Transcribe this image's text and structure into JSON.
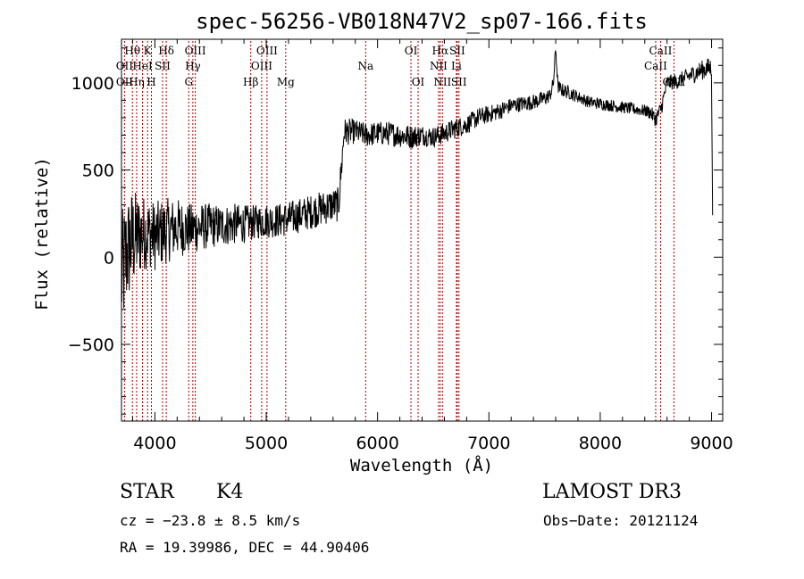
{
  "chart_data": {
    "type": "line",
    "title": "spec-56256-VB018N47V2_sp07-166.fits",
    "xlabel": "Wavelength (Å)",
    "ylabel": "Flux (relative)",
    "xlim": [
      3700,
      9100
    ],
    "ylim": [
      -940,
      1250
    ],
    "xticks": [
      4000,
      5000,
      6000,
      7000,
      8000,
      9000
    ],
    "xtick_labels": [
      "4000",
      "5000",
      "6000",
      "7000",
      "8000",
      "9000"
    ],
    "yticks": [
      -500,
      0,
      500,
      1000
    ],
    "ytick_labels": [
      "−500",
      "0",
      "500",
      "1000"
    ],
    "series": [
      {
        "name": "flux",
        "x": [
          3700,
          3750,
          3800,
          3850,
          3900,
          3950,
          4000,
          4100,
          4200,
          4300,
          4400,
          4500,
          4600,
          4700,
          4800,
          4900,
          5000,
          5100,
          5200,
          5300,
          5400,
          5500,
          5600,
          5650,
          5700,
          5800,
          5900,
          6000,
          6100,
          6200,
          6300,
          6400,
          6500,
          6600,
          6700,
          6800,
          6900,
          7000,
          7100,
          7200,
          7300,
          7400,
          7500,
          7550,
          7580,
          7600,
          7620,
          7650,
          7700,
          7800,
          7900,
          8000,
          8100,
          8200,
          8300,
          8400,
          8450,
          8500,
          8550,
          8600,
          8700,
          8800,
          8900,
          8950,
          9000,
          9010
        ],
        "y": [
          -120,
          30,
          100,
          120,
          140,
          140,
          120,
          150,
          170,
          160,
          170,
          180,
          180,
          190,
          190,
          200,
          210,
          210,
          220,
          240,
          260,
          280,
          300,
          300,
          720,
          720,
          700,
          710,
          710,
          700,
          690,
          700,
          690,
          710,
          740,
          760,
          800,
          820,
          840,
          870,
          880,
          890,
          910,
          930,
          1000,
          1200,
          980,
          960,
          950,
          920,
          890,
          880,
          870,
          860,
          850,
          840,
          830,
          790,
          860,
          1000,
          1010,
          1040,
          1070,
          1080,
          1090,
          150
        ],
        "noise": [
          380,
          330,
          300,
          250,
          220,
          200,
          200,
          190,
          170,
          150,
          140,
          130,
          120,
          120,
          110,
          100,
          100,
          100,
          100,
          100,
          100,
          100,
          100,
          100,
          80,
          70,
          70,
          70,
          70,
          70,
          70,
          60,
          60,
          60,
          60,
          55,
          55,
          50,
          50,
          45,
          45,
          45,
          45,
          40,
          40,
          40,
          40,
          40,
          40,
          35,
          35,
          35,
          35,
          35,
          35,
          35,
          40,
          45,
          45,
          45,
          45,
          50,
          55,
          60,
          60,
          60
        ]
      }
    ],
    "spectral_lines": [
      {
        "label": "Hθ",
        "wavelength": 3798,
        "row": 1
      },
      {
        "label": "OII",
        "wavelength": 3727,
        "row": 2
      },
      {
        "label": "Hη",
        "wavelength": 3836,
        "row": 3
      },
      {
        "label": "OII",
        "wavelength": 3728,
        "row": 3
      },
      {
        "label": "HeI",
        "wavelength": 3889,
        "row": 2
      },
      {
        "label": "K",
        "wavelength": 3934,
        "row": 1
      },
      {
        "label": "H",
        "wavelength": 3969,
        "row": 3
      },
      {
        "label": "SII",
        "wavelength": 4069,
        "row": 2
      },
      {
        "label": "Hδ",
        "wavelength": 4102,
        "row": 1
      },
      {
        "label": "OIII",
        "wavelength": 4363,
        "row": 1
      },
      {
        "label": "Hγ",
        "wavelength": 4341,
        "row": 2
      },
      {
        "label": "G",
        "wavelength": 4304,
        "row": 3
      },
      {
        "label": "Hβ",
        "wavelength": 4861,
        "row": 3
      },
      {
        "label": "OIII",
        "wavelength": 5007,
        "row": 1
      },
      {
        "label": "OIII",
        "wavelength": 4959,
        "row": 2
      },
      {
        "label": "Mg",
        "wavelength": 5175,
        "row": 3
      },
      {
        "label": "Na",
        "wavelength": 5893,
        "row": 2
      },
      {
        "label": "OI",
        "wavelength": 6300,
        "row": 1
      },
      {
        "label": "OI",
        "wavelength": 6364,
        "row": 3
      },
      {
        "label": "Hα",
        "wavelength": 6563,
        "row": 1
      },
      {
        "label": "NII",
        "wavelength": 6548,
        "row": 2
      },
      {
        "label": "NII",
        "wavelength": 6583,
        "row": 3
      },
      {
        "label": "SII",
        "wavelength": 6716,
        "row": 1
      },
      {
        "label": "Li",
        "wavelength": 6708,
        "row": 2
      },
      {
        "label": "SII",
        "wavelength": 6731,
        "row": 3
      },
      {
        "label": "CaII",
        "wavelength": 8498,
        "row": 2
      },
      {
        "label": "CaII",
        "wavelength": 8542,
        "row": 1
      },
      {
        "label": "CaII",
        "wavelength": 8662,
        "row": 3
      }
    ],
    "line_color": "#000000",
    "marker_color": "#aa0000"
  },
  "info": {
    "class_label": "STAR",
    "subclass": "K4",
    "survey": "LAMOST DR3",
    "cz": "cz = −23.8 ± 8.5 km/s",
    "obs_date": "Obs−Date: 20121124",
    "coords": "RA =  19.39986, DEC =  44.90406"
  }
}
